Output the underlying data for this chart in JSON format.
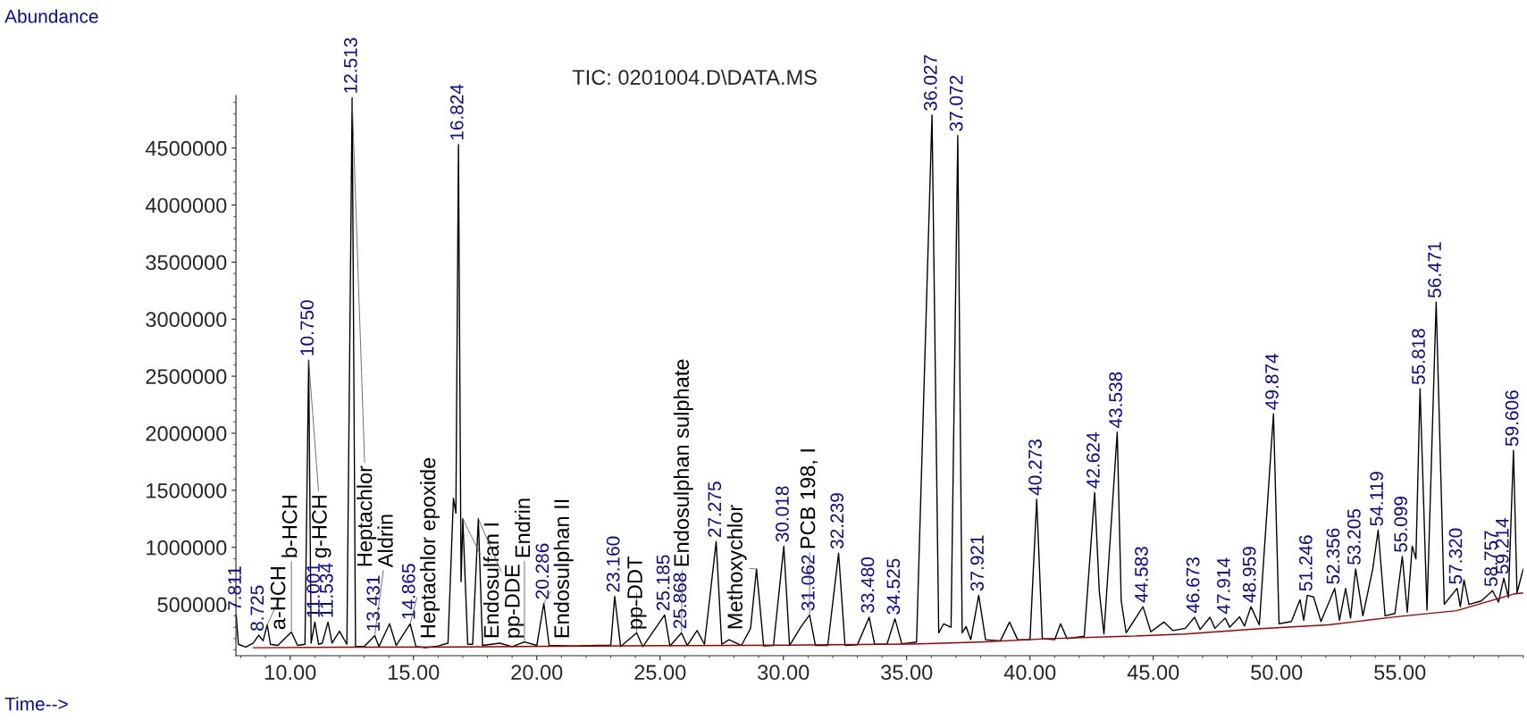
{
  "chart_data": {
    "type": "line",
    "title": "TIC: 0201004.D\\DATA.MS",
    "xlabel": "Time-->",
    "ylabel": "Abundance",
    "xlim": [
      7.8,
      60.0
    ],
    "ylim": [
      50000,
      4960000
    ],
    "xticks": [
      {
        "value": 10,
        "label": "10.00"
      },
      {
        "value": 15,
        "label": "15.00"
      },
      {
        "value": 20,
        "label": "20.00"
      },
      {
        "value": 25,
        "label": "25.00"
      },
      {
        "value": 30,
        "label": "30.00"
      },
      {
        "value": 35,
        "label": "35.00"
      },
      {
        "value": 40,
        "label": "40.00"
      },
      {
        "value": 45,
        "label": "45.00"
      },
      {
        "value": 50,
        "label": "50.00"
      },
      {
        "value": 55,
        "label": "55.00"
      }
    ],
    "yticks": [
      500000,
      1000000,
      1500000,
      2000000,
      2500000,
      3000000,
      3500000,
      4000000,
      4500000
    ],
    "series": [
      {
        "color": "#000000",
        "x": [
          7.811,
          7.9,
          8.2,
          8.5,
          8.725,
          8.9,
          9.07,
          9.2,
          9.5,
          10.05,
          10.3,
          10.6,
          10.75,
          10.85,
          11.001,
          11.15,
          11.3,
          11.534,
          11.7,
          12.0,
          12.3,
          12.513,
          12.65,
          13.0,
          13.431,
          13.6,
          14.03,
          14.3,
          14.865,
          15.1,
          15.5,
          16.0,
          16.4,
          16.62,
          16.72,
          16.824,
          16.93,
          17.0,
          17.2,
          17.4,
          17.63,
          17.8,
          18.5,
          19.0,
          19.5,
          20.0,
          20.286,
          20.5,
          21.5,
          22.5,
          23.0,
          23.16,
          23.4,
          24.05,
          24.3,
          25.185,
          25.4,
          25.868,
          26.1,
          26.5,
          26.8,
          27.275,
          27.5,
          27.8,
          28.3,
          28.67,
          28.91,
          29.2,
          29.6,
          30.018,
          30.25,
          30.72,
          31.062,
          31.3,
          31.8,
          32.239,
          32.5,
          33.0,
          33.48,
          33.7,
          34.2,
          34.525,
          34.8,
          35.4,
          36.027,
          36.3,
          36.5,
          36.8,
          37.072,
          37.25,
          37.41,
          37.6,
          37.921,
          38.2,
          38.8,
          39.17,
          39.5,
          40.0,
          40.273,
          40.5,
          41.0,
          41.24,
          41.5,
          42.2,
          42.624,
          42.81,
          43.0,
          43.538,
          43.7,
          43.9,
          44.583,
          44.9,
          45.43,
          45.8,
          46.3,
          46.673,
          46.9,
          47.3,
          47.5,
          47.914,
          48.1,
          48.5,
          48.7,
          48.959,
          49.3,
          49.874,
          50.1,
          50.6,
          50.949,
          51.1,
          51.246,
          51.5,
          51.8,
          52.356,
          52.55,
          52.8,
          53.0,
          53.205,
          53.5,
          53.9,
          54.119,
          54.4,
          54.8,
          55.099,
          55.3,
          55.5,
          55.65,
          55.818,
          56.1,
          56.471,
          56.8,
          57.32,
          57.45,
          57.6,
          57.8,
          58.3,
          58.757,
          59.0,
          59.214,
          59.4,
          59.606,
          59.75,
          60.0
        ],
        "values": [
          410000,
          150000,
          125000,
          160000,
          230000,
          180000,
          320000,
          150000,
          140000,
          258000,
          140000,
          150000,
          2640000,
          160000,
          345000,
          150000,
          160000,
          345000,
          160000,
          265000,
          150000,
          4940000,
          130000,
          130000,
          227000,
          130000,
          330000,
          140000,
          330000,
          130000,
          120000,
          135000,
          160000,
          1430000,
          1300000,
          4530000,
          700000,
          1250000,
          150000,
          150000,
          1250000,
          140000,
          160000,
          130000,
          170000,
          140000,
          508000,
          140000,
          135000,
          140000,
          140000,
          570000,
          130000,
          250000,
          130000,
          407000,
          135000,
          250000,
          140000,
          270000,
          150000,
          1050000,
          150000,
          190000,
          140000,
          290000,
          810000,
          135000,
          140000,
          1010000,
          140000,
          305000,
          407000,
          140000,
          140000,
          950000,
          140000,
          145000,
          387000,
          150000,
          150000,
          374000,
          155000,
          170000,
          4790000,
          250000,
          330000,
          300000,
          4610000,
          250000,
          305000,
          190000,
          580000,
          190000,
          180000,
          345000,
          190000,
          190000,
          1420000,
          200000,
          190000,
          330000,
          200000,
          220000,
          1480000,
          615000,
          240000,
          2010000,
          530000,
          250000,
          480000,
          260000,
          345000,
          270000,
          290000,
          387000,
          280000,
          387000,
          290000,
          380000,
          300000,
          390000,
          310000,
          480000,
          320000,
          2170000,
          330000,
          350000,
          540000,
          360000,
          580000,
          565000,
          350000,
          640000,
          360000,
          640000,
          380000,
          810000,
          400000,
          810000,
          1150000,
          400000,
          420000,
          920000,
          430000,
          1010000,
          900000,
          2390000,
          450000,
          3150000,
          500000,
          640000,
          480000,
          715000,
          500000,
          530000,
          620000,
          520000,
          730000,
          560000,
          1850000,
          600000,
          810000
        ]
      },
      {
        "color": "#a00000",
        "x": [
          8.5,
          12.0,
          16.7,
          20.6,
          25.0,
          30.0,
          35.2,
          38.0,
          40.8,
          43.9,
          46.3,
          49.2,
          52.1,
          54.8,
          57.3,
          59.6,
          60.0
        ],
        "values": [
          120000,
          125000,
          127000,
          132000,
          138000,
          142000,
          152000,
          170000,
          200000,
          220000,
          240000,
          285000,
          320000,
          390000,
          445000,
          590000,
          600000
        ]
      }
    ],
    "annotations": [
      {
        "text": "7.811",
        "x": 7.811,
        "y": 410000
      },
      {
        "text": "8.725",
        "x": 8.725,
        "y": 230000
      },
      {
        "text": "10.750",
        "x": 10.75,
        "y": 2640000
      },
      {
        "text": "11.001",
        "x": 11.001,
        "y": 345000
      },
      {
        "text": "11.534",
        "x": 11.534,
        "y": 345000
      },
      {
        "text": "12.513",
        "x": 12.513,
        "y": 4940000
      },
      {
        "text": "13.431",
        "x": 13.431,
        "y": 227000
      },
      {
        "text": "14.865",
        "x": 14.865,
        "y": 330000
      },
      {
        "text": "16.824",
        "x": 16.824,
        "y": 4530000
      },
      {
        "text": "20.286",
        "x": 20.286,
        "y": 508000
      },
      {
        "text": "23.160",
        "x": 23.16,
        "y": 570000
      },
      {
        "text": "25.185",
        "x": 25.185,
        "y": 407000
      },
      {
        "text": "25.868",
        "x": 25.868,
        "y": 250000
      },
      {
        "text": "27.275",
        "x": 27.275,
        "y": 1050000
      },
      {
        "text": "30.018",
        "x": 30.018,
        "y": 1010000
      },
      {
        "text": "31.062",
        "x": 31.062,
        "y": 407000
      },
      {
        "text": "32.239",
        "x": 32.239,
        "y": 950000
      },
      {
        "text": "33.480",
        "x": 33.48,
        "y": 387000
      },
      {
        "text": "34.525",
        "x": 34.525,
        "y": 374000
      },
      {
        "text": "36.027",
        "x": 36.027,
        "y": 4790000
      },
      {
        "text": "37.072",
        "x": 37.072,
        "y": 4610000
      },
      {
        "text": "37.921",
        "x": 37.921,
        "y": 580000
      },
      {
        "text": "40.273",
        "x": 40.273,
        "y": 1420000
      },
      {
        "text": "42.624",
        "x": 42.624,
        "y": 1480000
      },
      {
        "text": "43.538",
        "x": 43.538,
        "y": 2010000
      },
      {
        "text": "44.583",
        "x": 44.583,
        "y": 480000
      },
      {
        "text": "46.673",
        "x": 46.673,
        "y": 387000
      },
      {
        "text": "47.914",
        "x": 47.914,
        "y": 380000
      },
      {
        "text": "48.959",
        "x": 48.959,
        "y": 480000
      },
      {
        "text": "49.874",
        "x": 49.874,
        "y": 2170000
      },
      {
        "text": "51.246",
        "x": 51.246,
        "y": 580000
      },
      {
        "text": "52.356",
        "x": 52.356,
        "y": 640000
      },
      {
        "text": "53.205",
        "x": 53.205,
        "y": 810000
      },
      {
        "text": "54.119",
        "x": 54.119,
        "y": 1150000
      },
      {
        "text": "55.099",
        "x": 55.099,
        "y": 920000
      },
      {
        "text": "55.818",
        "x": 55.818,
        "y": 2390000
      },
      {
        "text": "56.471",
        "x": 56.471,
        "y": 3150000
      },
      {
        "text": "57.320",
        "x": 57.32,
        "y": 640000
      },
      {
        "text": "58.757",
        "x": 58.757,
        "y": 620000
      },
      {
        "text": "59.214",
        "x": 59.214,
        "y": 730000
      },
      {
        "text": "59.606",
        "x": 59.606,
        "y": 1850000
      },
      {
        "text": "a-HCH",
        "x": 9.07,
        "y": 320000
      },
      {
        "text": "b-HCH",
        "x": 10.05,
        "y": 258000
      },
      {
        "text": "g-HCH",
        "x": 10.75,
        "y": 2640000
      },
      {
        "text": "Heptachlor",
        "x": 12.513,
        "y": 4940000
      },
      {
        "text": "Aldrin",
        "x": 13.431,
        "y": 227000
      },
      {
        "text": "Heptachlor epoxide",
        "x": 14.865,
        "y": 330000
      },
      {
        "text": "Endosulfan I",
        "x": 17.0,
        "y": 1250000
      },
      {
        "text": "pp-DDE",
        "x": 17.63,
        "y": 1250000
      },
      {
        "text": "Endrin",
        "x": 19.5,
        "y": 170000
      },
      {
        "text": "Endosulphan II",
        "x": 20.286,
        "y": 508000
      },
      {
        "text": "pp-DDT",
        "x": 24.05,
        "y": 250000
      },
      {
        "text": "Endosulphan sulphate",
        "x": 25.868,
        "y": 250000
      },
      {
        "text": "Methoxychlor",
        "x": 28.91,
        "y": 810000
      },
      {
        "text": "PCB 198, I",
        "x": 31.062,
        "y": 407000
      }
    ]
  }
}
